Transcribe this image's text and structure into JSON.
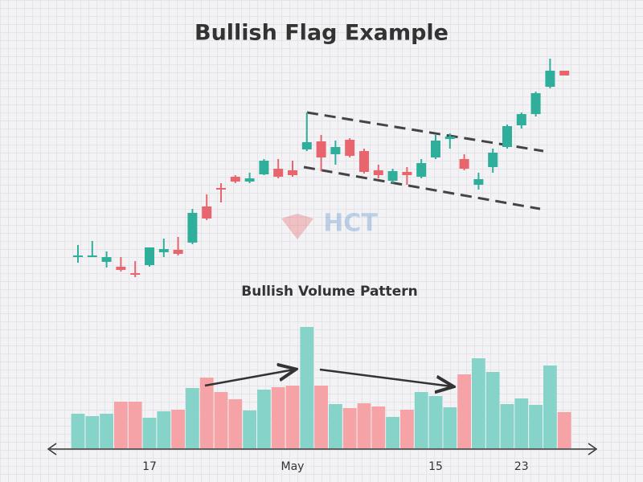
{
  "chart_data": [
    {
      "type": "candlestick",
      "title": "Bullish Flag Example",
      "watermark": "HCT",
      "up_color": "#2fae9c",
      "down_color": "#e9656d",
      "ylim": [
        0,
        320
      ],
      "open": [
        60,
        60,
        54,
        48,
        40,
        50,
        66,
        69,
        78,
        123,
        146,
        160,
        154,
        163,
        170,
        168,
        194,
        204,
        188,
        206,
        192,
        168,
        155,
        166,
        160,
        184,
        207,
        182,
        150,
        172,
        197,
        224,
        238,
        272,
        292
      ],
      "high": [
        75,
        80,
        67,
        60,
        55,
        72,
        83,
        85,
        120,
        138,
        152,
        162,
        165,
        182,
        182,
        180,
        240,
        212,
        205,
        208,
        195,
        175,
        170,
        172,
        182,
        212,
        214,
        188,
        165,
        195,
        225,
        240,
        266,
        307,
        292
      ],
      "low": [
        53,
        60,
        47,
        42,
        35,
        48,
        60,
        62,
        76,
        106,
        128,
        152,
        152,
        162,
        158,
        160,
        192,
        167,
        175,
        184,
        164,
        158,
        152,
        150,
        158,
        182,
        195,
        168,
        144,
        165,
        195,
        220,
        235,
        270,
        286
      ],
      "close": [
        62,
        62,
        60,
        44,
        38,
        72,
        70,
        64,
        115,
        108,
        144,
        154,
        158,
        180,
        160,
        162,
        203,
        184,
        197,
        186,
        166,
        162,
        167,
        162,
        177,
        205,
        210,
        170,
        157,
        190,
        223,
        238,
        264,
        292,
        286
      ]
    },
    {
      "type": "bar",
      "title": "Bullish Volume Pattern",
      "ylim": [
        0,
        160
      ],
      "categories": [
        null,
        null,
        null,
        null,
        null,
        "17",
        null,
        null,
        null,
        null,
        null,
        null,
        null,
        null,
        null,
        "May",
        null,
        null,
        null,
        null,
        null,
        null,
        null,
        null,
        null,
        "15",
        null,
        null,
        null,
        null,
        null,
        "23",
        null,
        null,
        null
      ],
      "values": [
        43,
        40,
        43,
        58,
        58,
        38,
        46,
        48,
        75,
        88,
        70,
        61,
        47,
        73,
        76,
        78,
        151,
        78,
        55,
        50,
        56,
        52,
        39,
        48,
        70,
        65,
        51,
        92,
        112,
        95,
        55,
        62,
        54,
        103,
        45
      ],
      "colors": [
        "#86d4c9",
        "#86d4c9",
        "#86d4c9",
        "#f5a3a6",
        "#f5a3a6",
        "#86d4c9",
        "#86d4c9",
        "#f5a3a6",
        "#86d4c9",
        "#f5a3a6",
        "#f5a3a6",
        "#f5a3a6",
        "#86d4c9",
        "#86d4c9",
        "#f5a3a6",
        "#f5a3a6",
        "#86d4c9",
        "#f5a3a6",
        "#86d4c9",
        "#f5a3a6",
        "#f5a3a6",
        "#f5a3a6",
        "#86d4c9",
        "#f5a3a6",
        "#86d4c9",
        "#86d4c9",
        "#86d4c9",
        "#f5a3a6",
        "#86d4c9",
        "#86d4c9",
        "#86d4c9",
        "#86d4c9",
        "#86d4c9",
        "#86d4c9",
        "#f5a3a6"
      ]
    }
  ]
}
